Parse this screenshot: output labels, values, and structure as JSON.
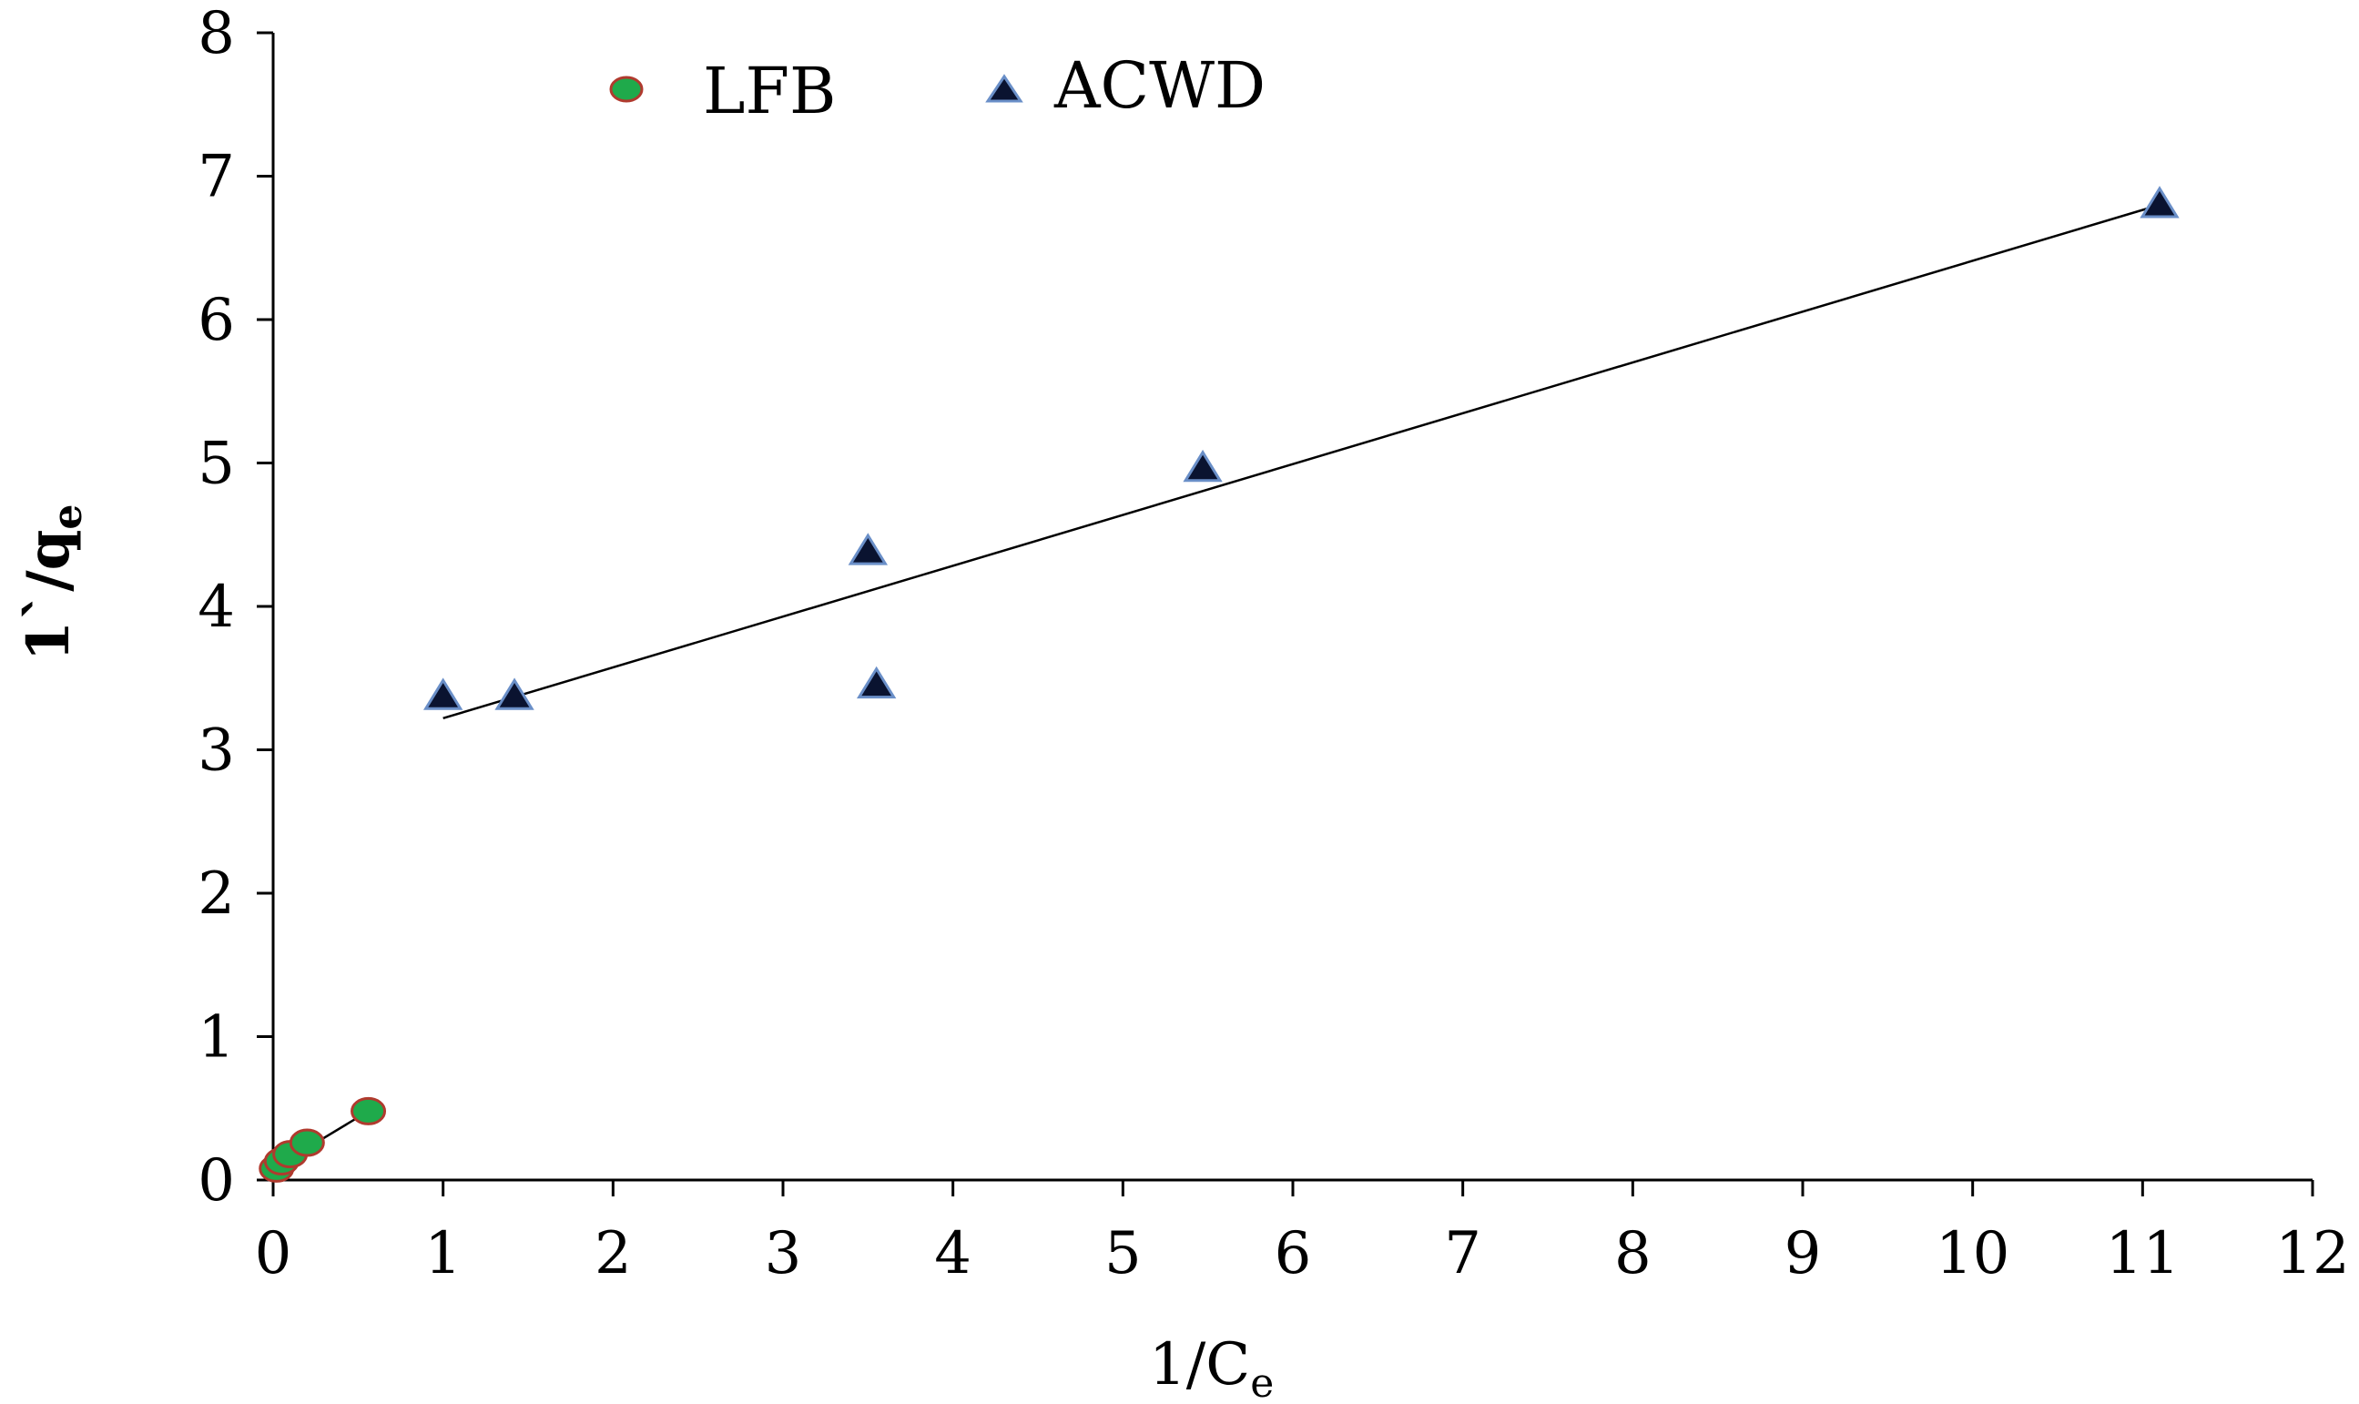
{
  "chart_data": {
    "type": "scatter",
    "title": "",
    "xlabel": "1/C",
    "xlabel_subscript": "e",
    "ylabel": "1`/q",
    "ylabel_subscript": "e",
    "xlim": [
      0,
      12
    ],
    "ylim": [
      0,
      8
    ],
    "xticks": [
      "0",
      "1",
      "2",
      "3",
      "4",
      "5",
      "6",
      "7",
      "8",
      "9",
      "10",
      "11",
      "12"
    ],
    "yticks": [
      "0",
      "1",
      "2",
      "3",
      "4",
      "5",
      "6",
      "7",
      "8"
    ],
    "grid": false,
    "legend_position": "top-center",
    "series": [
      {
        "name": "LFB",
        "marker": "circle",
        "color": "#1faa4b",
        "edge_color": "#b03a2e",
        "x": [
          0.02,
          0.05,
          0.1,
          0.2,
          0.56
        ],
        "y": [
          0.08,
          0.13,
          0.18,
          0.26,
          0.48
        ],
        "trendline": {
          "x": [
            0.0,
            0.56
          ],
          "y": [
            0.08,
            0.48
          ]
        }
      },
      {
        "name": "ACWD",
        "marker": "triangle",
        "color": "#0a1330",
        "edge_color": "#6a8fc8",
        "x": [
          1.0,
          1.42,
          3.5,
          3.55,
          5.47,
          11.1
        ],
        "y": [
          3.37,
          3.37,
          4.38,
          3.45,
          4.96,
          6.8
        ],
        "trendline": {
          "x": [
            1.0,
            11.1
          ],
          "y": [
            3.22,
            6.8
          ]
        }
      }
    ]
  }
}
